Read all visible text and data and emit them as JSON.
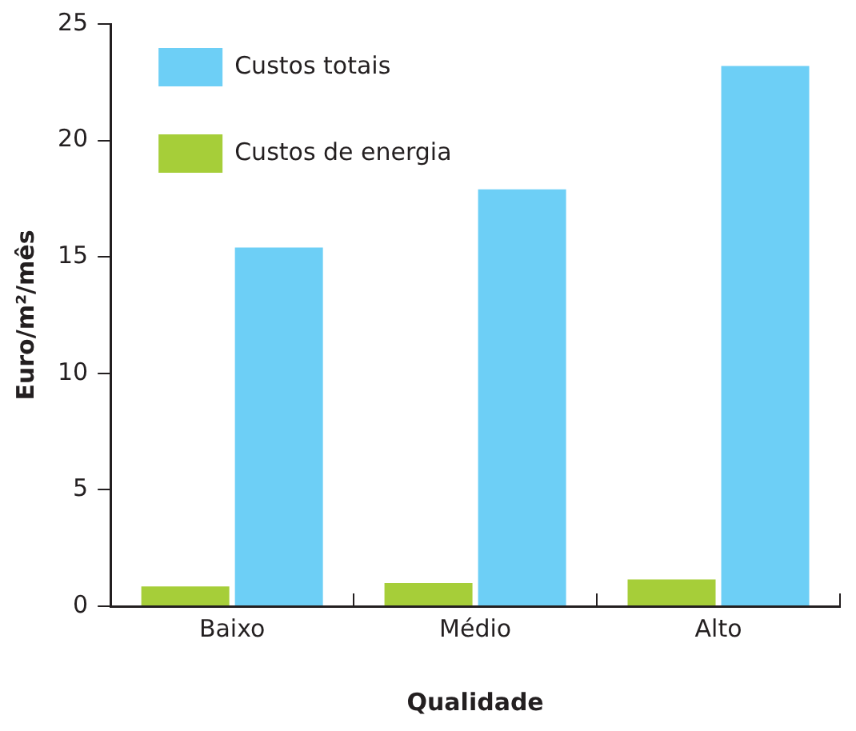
{
  "chart_data": {
    "type": "bar",
    "xlabel": "Qualidade",
    "ylabel": "Euro/m²/mês",
    "categories": [
      "Baixo",
      "Médio",
      "Alto"
    ],
    "series": [
      {
        "name": "Custos de energia",
        "color": "#a6ce39",
        "values": [
          0.85,
          1.0,
          1.15
        ]
      },
      {
        "name": "Custos totais",
        "color": "#6dcff6",
        "values": [
          15.4,
          17.9,
          23.2
        ]
      }
    ],
    "ylim": [
      0,
      25
    ],
    "yticks": [
      0,
      5,
      10,
      15,
      20,
      25
    ],
    "grid": false,
    "legend": "top left"
  }
}
